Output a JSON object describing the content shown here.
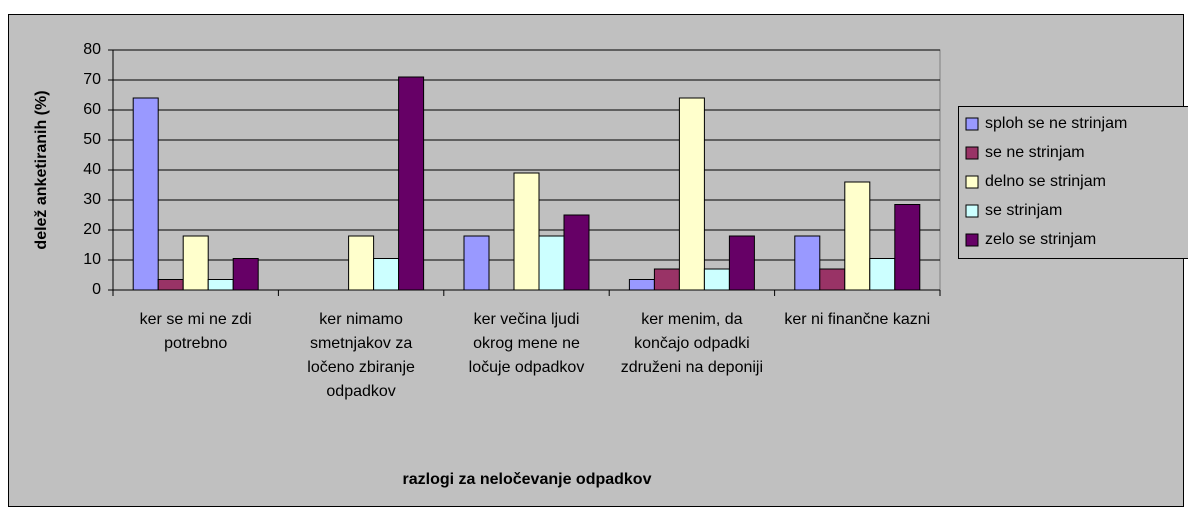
{
  "chart_data": {
    "type": "bar",
    "y_label": "delež anketiranih (%)",
    "x_label": "razlogi za neločevanje odpadkov",
    "categories": [
      "ker se mi ne zdi potrebno",
      "ker nimamo smetnjakov za ločeno zbiranje odpadkov",
      "ker večina ljudi okrog mene ne ločuje odpadkov",
      "ker menim, da končajo odpadki združeni na deponiji",
      "ker ni finančne kazni"
    ],
    "series": [
      {
        "name": "sploh se ne strinjam",
        "color": "#9999ff",
        "values": [
          64,
          0,
          18,
          3.5,
          18
        ]
      },
      {
        "name": "se ne strinjam",
        "color": "#993366",
        "values": [
          3.5,
          0,
          0,
          7,
          7
        ]
      },
      {
        "name": "delno se strinjam",
        "color": "#ffffcc",
        "values": [
          18,
          18,
          39,
          64,
          36
        ]
      },
      {
        "name": "se strinjam",
        "color": "#ccffff",
        "values": [
          3.5,
          10.5,
          18,
          7,
          10.5
        ]
      },
      {
        "name": "zelo se strinjam",
        "color": "#660066",
        "values": [
          10.5,
          71,
          25,
          18,
          28.5
        ]
      }
    ],
    "ylim": [
      0,
      80
    ],
    "yticks": [
      0,
      10,
      20,
      30,
      40,
      50,
      60,
      70,
      80
    ],
    "grid": true,
    "legend": "right"
  }
}
